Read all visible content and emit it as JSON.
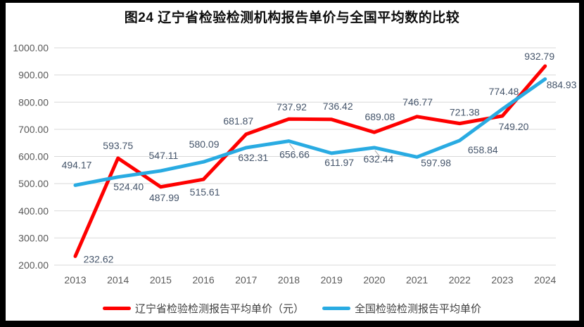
{
  "chart_data": {
    "type": "line",
    "title": "图24 辽宁省检验检测机构报告单价与全国平均数的比较",
    "categories": [
      "2013",
      "2014",
      "2015",
      "2016",
      "2017",
      "2018",
      "2019",
      "2020",
      "2021",
      "2022",
      "2023",
      "2024"
    ],
    "series": [
      {
        "name": "辽宁省检验检测报告平均单价（元）",
        "color": "#fe0000",
        "values": [
          232.62,
          593.75,
          487.99,
          515.61,
          681.87,
          737.92,
          736.42,
          689.08,
          746.77,
          721.38,
          749.2,
          932.79
        ],
        "label_offsets": [
          [
            33,
            9
          ],
          [
            0,
            -13
          ],
          [
            5,
            20
          ],
          [
            2,
            23
          ],
          [
            -11,
            -14
          ],
          [
            4,
            -12
          ],
          [
            9,
            -14
          ],
          [
            8,
            -17
          ],
          [
            1,
            -16
          ],
          [
            7,
            -11
          ],
          [
            16,
            20
          ],
          [
            -8,
            -9
          ]
        ],
        "leaders": []
      },
      {
        "name": "全国检验检测报告平均单价",
        "color": "#29abe2",
        "values": [
          494.17,
          524.4,
          547.11,
          580.09,
          632.31,
          656.66,
          611.97,
          632.44,
          597.98,
          658.84,
          774.48,
          884.93
        ],
        "label_offsets": [
          [
            2,
            -24
          ],
          [
            15,
            19
          ],
          [
            4,
            -17
          ],
          [
            1,
            -20
          ],
          [
            10,
            19
          ],
          [
            8,
            24
          ],
          [
            11,
            18
          ],
          [
            6,
            21
          ],
          [
            27,
            13
          ],
          [
            33,
            18
          ],
          [
            2,
            -20
          ],
          [
            2,
            13,
            "start"
          ]
        ],
        "leaders": [
          5,
          7
        ]
      }
    ],
    "ylim": [
      200,
      1000
    ],
    "ytick_step": 100,
    "ytick_labels": [
      "200.00",
      "300.00",
      "400.00",
      "500.00",
      "600.00",
      "700.00",
      "800.00",
      "900.00",
      "1000.00"
    ],
    "grid": true,
    "legend_position": "bottom",
    "colors": {
      "gridline": "#d9d9d9",
      "axis_text": "#595959",
      "data_label_text": "#44546a",
      "leader_line": "#a6a6a6",
      "frame": "#000000",
      "background": "#ffffff"
    }
  }
}
